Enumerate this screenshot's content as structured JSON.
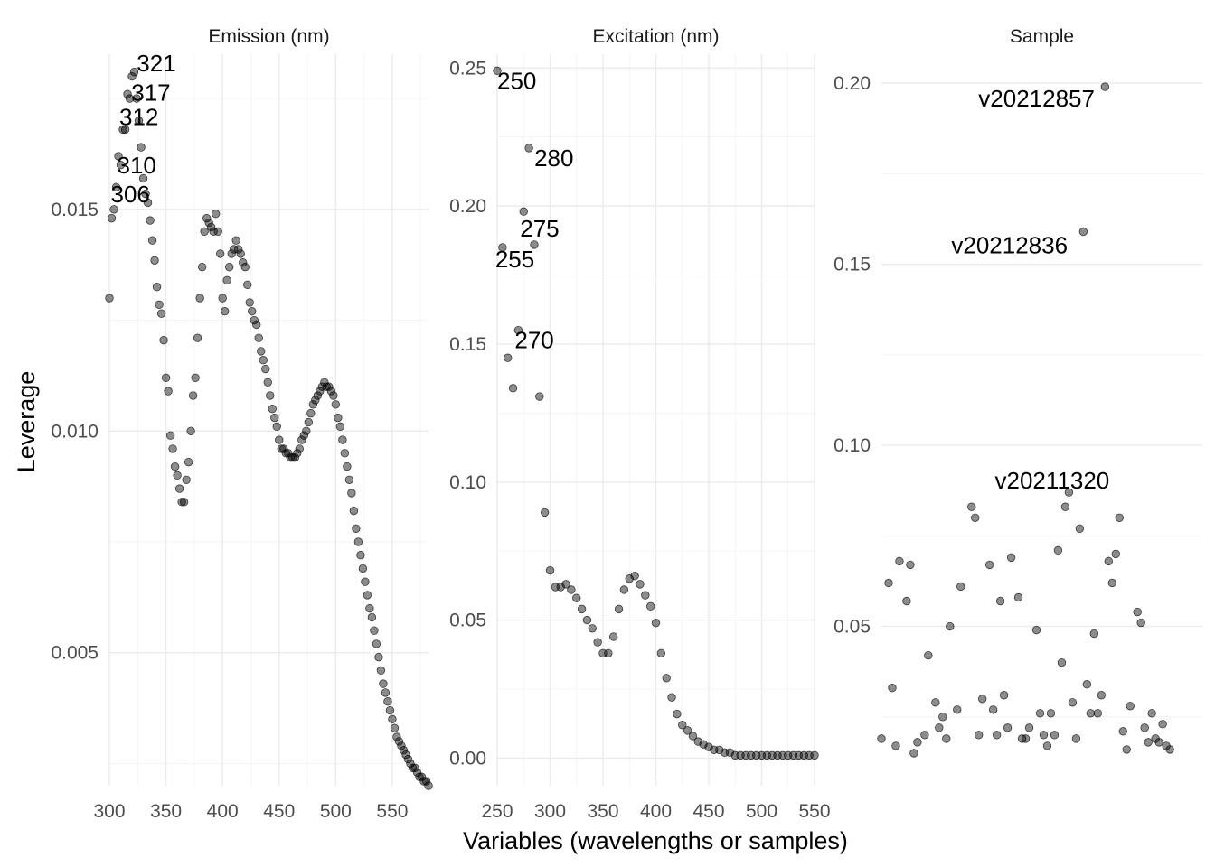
{
  "figure": {
    "xlabel": "Variables (wavelengths or samples)",
    "ylabel": "Leverage"
  },
  "chart_data": [
    {
      "type": "scatter",
      "title": "Emission (nm)",
      "xlim": [
        300,
        582
      ],
      "ylim": [
        0.002,
        0.0185
      ],
      "xticks": [
        300,
        350,
        400,
        450,
        500,
        550
      ],
      "xtick_labels": [
        "300",
        "350",
        "400",
        "450",
        "500",
        "550"
      ],
      "yticks": [
        0.005,
        0.01,
        0.015
      ],
      "ytick_labels": [
        "0.005",
        "0.010",
        "0.015"
      ],
      "anchors": [
        [
          300,
          0.013
        ],
        [
          302,
          0.0148
        ],
        [
          304,
          0.015
        ],
        [
          306,
          0.0155
        ],
        [
          308,
          0.0162
        ],
        [
          310,
          0.016
        ],
        [
          312,
          0.0168
        ],
        [
          314,
          0.0168
        ],
        [
          316,
          0.0176
        ],
        [
          318,
          0.0175
        ],
        [
          320,
          0.018
        ],
        [
          321,
          0.0184
        ],
        [
          323,
          0.0178
        ],
        [
          325,
          0.0172
        ],
        [
          327,
          0.0168
        ],
        [
          329,
          0.016
        ],
        [
          331,
          0.0154
        ],
        [
          333,
          0.0153
        ],
        [
          335,
          0.015
        ],
        [
          337,
          0.0145
        ],
        [
          339,
          0.0141
        ],
        [
          341,
          0.0136
        ],
        [
          343,
          0.0129
        ],
        [
          345,
          0.0128
        ],
        [
          347,
          0.0125
        ],
        [
          349,
          0.0116
        ],
        [
          350,
          0.0112
        ],
        [
          352,
          0.0109
        ],
        [
          354,
          0.0099
        ],
        [
          356,
          0.0096
        ],
        [
          358,
          0.0092
        ],
        [
          360,
          0.009
        ],
        [
          362,
          0.0087
        ],
        [
          364,
          0.0084
        ],
        [
          366,
          0.0084
        ],
        [
          368,
          0.0089
        ],
        [
          370,
          0.0093
        ],
        [
          372,
          0.01
        ],
        [
          374,
          0.0108
        ],
        [
          376,
          0.0112
        ],
        [
          378,
          0.0121
        ],
        [
          380,
          0.013
        ],
        [
          382,
          0.0137
        ],
        [
          384,
          0.0145
        ],
        [
          386,
          0.0148
        ],
        [
          388,
          0.0147
        ],
        [
          390,
          0.0146
        ],
        [
          392,
          0.0145
        ],
        [
          394,
          0.0149
        ],
        [
          396,
          0.0145
        ],
        [
          398,
          0.014
        ],
        [
          400,
          0.013
        ],
        [
          402,
          0.0127
        ],
        [
          404,
          0.0134
        ],
        [
          406,
          0.0137
        ],
        [
          408,
          0.014
        ],
        [
          410,
          0.0141
        ],
        [
          412,
          0.0143
        ],
        [
          414,
          0.0141
        ],
        [
          416,
          0.014
        ],
        [
          418,
          0.0138
        ],
        [
          420,
          0.0137
        ],
        [
          422,
          0.0133
        ],
        [
          424,
          0.0129
        ],
        [
          426,
          0.0127
        ],
        [
          428,
          0.0125
        ],
        [
          430,
          0.0124
        ],
        [
          432,
          0.0121
        ],
        [
          434,
          0.0118
        ],
        [
          436,
          0.0116
        ],
        [
          438,
          0.0114
        ],
        [
          440,
          0.0111
        ],
        [
          442,
          0.0108
        ],
        [
          444,
          0.0105
        ],
        [
          446,
          0.0103
        ],
        [
          448,
          0.0101
        ],
        [
          450,
          0.0098
        ],
        [
          452,
          0.0096
        ],
        [
          454,
          0.0096
        ],
        [
          456,
          0.0095
        ],
        [
          458,
          0.0095
        ],
        [
          460,
          0.0094
        ],
        [
          462,
          0.0094
        ],
        [
          464,
          0.0094
        ],
        [
          466,
          0.0095
        ],
        [
          468,
          0.0096
        ],
        [
          470,
          0.0098
        ],
        [
          472,
          0.0099
        ],
        [
          474,
          0.01
        ],
        [
          476,
          0.0102
        ],
        [
          478,
          0.0104
        ],
        [
          480,
          0.0106
        ],
        [
          482,
          0.0107
        ],
        [
          484,
          0.0108
        ],
        [
          486,
          0.0109
        ],
        [
          488,
          0.011
        ],
        [
          490,
          0.0111
        ],
        [
          492,
          0.011
        ],
        [
          494,
          0.011
        ],
        [
          496,
          0.0109
        ],
        [
          498,
          0.0108
        ],
        [
          500,
          0.0106
        ],
        [
          502,
          0.0103
        ],
        [
          504,
          0.0101
        ],
        [
          506,
          0.0098
        ],
        [
          508,
          0.0095
        ],
        [
          510,
          0.0092
        ],
        [
          512,
          0.0089
        ],
        [
          514,
          0.0086
        ],
        [
          516,
          0.0082
        ],
        [
          518,
          0.0078
        ],
        [
          520,
          0.0075
        ],
        [
          522,
          0.0072
        ],
        [
          524,
          0.0069
        ],
        [
          526,
          0.0066
        ],
        [
          528,
          0.0063
        ],
        [
          530,
          0.006
        ],
        [
          532,
          0.0058
        ],
        [
          534,
          0.0055
        ],
        [
          536,
          0.0052
        ],
        [
          538,
          0.0049
        ],
        [
          540,
          0.0046
        ],
        [
          542,
          0.0043
        ],
        [
          544,
          0.0041
        ],
        [
          546,
          0.0039
        ],
        [
          548,
          0.0037
        ],
        [
          550,
          0.0035
        ],
        [
          552,
          0.0033
        ],
        [
          554,
          0.0031
        ],
        [
          556,
          0.003
        ],
        [
          558,
          0.0029
        ],
        [
          560,
          0.0028
        ],
        [
          562,
          0.0027
        ],
        [
          564,
          0.0026
        ],
        [
          566,
          0.0025
        ],
        [
          568,
          0.0024
        ],
        [
          570,
          0.0024
        ],
        [
          572,
          0.0023
        ],
        [
          574,
          0.0022
        ],
        [
          576,
          0.0022
        ],
        [
          578,
          0.0021
        ],
        [
          580,
          0.0021
        ],
        [
          582,
          0.002
        ]
      ],
      "labels": [
        {
          "text": "321",
          "x": 321,
          "y": 0.0184
        },
        {
          "text": "317",
          "x": 317,
          "y": 0.0177
        },
        {
          "text": "312",
          "x": 312,
          "y": 0.0171
        },
        {
          "text": "310",
          "x": 310,
          "y": 0.0161
        },
        {
          "text": "306",
          "x": 306,
          "y": 0.0154
        }
      ]
    },
    {
      "type": "scatter",
      "title": "Excitation (nm)",
      "xlim": [
        250,
        550
      ],
      "ylim": [
        -0.01,
        0.255
      ],
      "xticks": [
        250,
        300,
        350,
        400,
        450,
        500,
        550
      ],
      "xtick_labels": [
        "250",
        "300",
        "350",
        "400",
        "450",
        "500",
        "550"
      ],
      "yticks": [
        0.0,
        0.05,
        0.1,
        0.15,
        0.2,
        0.25
      ],
      "ytick_labels": [
        "0.00",
        "0.05",
        "0.10",
        "0.15",
        "0.20",
        "0.25"
      ],
      "points": [
        [
          250,
          0.249
        ],
        [
          255,
          0.185
        ],
        [
          260,
          0.145
        ],
        [
          265,
          0.134
        ],
        [
          270,
          0.155
        ],
        [
          275,
          0.198
        ],
        [
          280,
          0.221
        ],
        [
          285,
          0.186
        ],
        [
          290,
          0.131
        ],
        [
          295,
          0.089
        ],
        [
          300,
          0.068
        ],
        [
          305,
          0.062
        ],
        [
          310,
          0.062
        ],
        [
          315,
          0.063
        ],
        [
          320,
          0.061
        ],
        [
          325,
          0.058
        ],
        [
          330,
          0.054
        ],
        [
          335,
          0.05
        ],
        [
          340,
          0.047
        ],
        [
          345,
          0.042
        ],
        [
          350,
          0.038
        ],
        [
          355,
          0.038
        ],
        [
          360,
          0.044
        ],
        [
          365,
          0.054
        ],
        [
          370,
          0.061
        ],
        [
          375,
          0.065
        ],
        [
          380,
          0.066
        ],
        [
          385,
          0.063
        ],
        [
          390,
          0.059
        ],
        [
          395,
          0.055
        ],
        [
          400,
          0.049
        ],
        [
          405,
          0.038
        ],
        [
          410,
          0.029
        ],
        [
          415,
          0.022
        ],
        [
          420,
          0.016
        ],
        [
          425,
          0.012
        ],
        [
          430,
          0.01
        ],
        [
          435,
          0.008
        ],
        [
          440,
          0.006
        ],
        [
          445,
          0.005
        ],
        [
          450,
          0.004
        ],
        [
          455,
          0.003
        ],
        [
          460,
          0.003
        ],
        [
          465,
          0.002
        ],
        [
          470,
          0.002
        ],
        [
          475,
          0.001
        ],
        [
          480,
          0.001
        ],
        [
          485,
          0.001
        ],
        [
          490,
          0.001
        ],
        [
          495,
          0.001
        ],
        [
          500,
          0.001
        ],
        [
          505,
          0.001
        ],
        [
          510,
          0.001
        ],
        [
          515,
          0.001
        ],
        [
          520,
          0.001
        ],
        [
          525,
          0.001
        ],
        [
          530,
          0.001
        ],
        [
          535,
          0.001
        ],
        [
          540,
          0.001
        ],
        [
          545,
          0.001
        ],
        [
          550,
          0.001
        ]
      ],
      "labels": [
        {
          "text": "250",
          "x": 250,
          "y": 0.249
        },
        {
          "text": "280",
          "x": 280,
          "y": 0.221
        },
        {
          "text": "275",
          "x": 275,
          "y": 0.198
        },
        {
          "text": "255",
          "x": 255,
          "y": 0.185
        },
        {
          "text": "270",
          "x": 270,
          "y": 0.155
        }
      ]
    },
    {
      "type": "scatter",
      "title": "Sample",
      "xlim": [
        1,
        90
      ],
      "ylim": [
        0.006,
        0.208
      ],
      "xticks": [],
      "xtick_labels": [],
      "yticks": [
        0.05,
        0.1,
        0.15,
        0.2
      ],
      "ytick_labels": [
        "0.05",
        "0.10",
        "0.15",
        "0.20"
      ],
      "points": [
        [
          1,
          0.019
        ],
        [
          3,
          0.062
        ],
        [
          4,
          0.033
        ],
        [
          5,
          0.017
        ],
        [
          6,
          0.068
        ],
        [
          8,
          0.057
        ],
        [
          9,
          0.067
        ],
        [
          10,
          0.015
        ],
        [
          11,
          0.018
        ],
        [
          13,
          0.02
        ],
        [
          14,
          0.042
        ],
        [
          16,
          0.029
        ],
        [
          17,
          0.022
        ],
        [
          18,
          0.025
        ],
        [
          19,
          0.019
        ],
        [
          20,
          0.05
        ],
        [
          22,
          0.027
        ],
        [
          23,
          0.061
        ],
        [
          26,
          0.083
        ],
        [
          27,
          0.08
        ],
        [
          28,
          0.02
        ],
        [
          29,
          0.03
        ],
        [
          31,
          0.067
        ],
        [
          32,
          0.027
        ],
        [
          33,
          0.02
        ],
        [
          34,
          0.057
        ],
        [
          35,
          0.031
        ],
        [
          36,
          0.022
        ],
        [
          37,
          0.069
        ],
        [
          39,
          0.058
        ],
        [
          40,
          0.019
        ],
        [
          41,
          0.019
        ],
        [
          42,
          0.022
        ],
        [
          44,
          0.049
        ],
        [
          45,
          0.026
        ],
        [
          46,
          0.02
        ],
        [
          47,
          0.017
        ],
        [
          48,
          0.026
        ],
        [
          49,
          0.02
        ],
        [
          50,
          0.071
        ],
        [
          51,
          0.04
        ],
        [
          52,
          0.083
        ],
        [
          53,
          0.087
        ],
        [
          54,
          0.029
        ],
        [
          55,
          0.019
        ],
        [
          56,
          0.077
        ],
        [
          57,
          0.159
        ],
        [
          58,
          0.034
        ],
        [
          59,
          0.026
        ],
        [
          60,
          0.048
        ],
        [
          61,
          0.026
        ],
        [
          62,
          0.031
        ],
        [
          63,
          0.199
        ],
        [
          64,
          0.068
        ],
        [
          65,
          0.062
        ],
        [
          66,
          0.07
        ],
        [
          67,
          0.08
        ],
        [
          68,
          0.021
        ],
        [
          69,
          0.016
        ],
        [
          70,
          0.028
        ],
        [
          72,
          0.054
        ],
        [
          73,
          0.051
        ],
        [
          74,
          0.022
        ],
        [
          75,
          0.018
        ],
        [
          76,
          0.026
        ],
        [
          77,
          0.019
        ],
        [
          78,
          0.018
        ],
        [
          79,
          0.023
        ],
        [
          80,
          0.017
        ],
        [
          81,
          0.016
        ]
      ],
      "labels": [
        {
          "text": "v20212857",
          "x": 63,
          "y": 0.199
        },
        {
          "text": "v20212836",
          "x": 57,
          "y": 0.159
        },
        {
          "text": "v20211320",
          "x": 44,
          "y": 0.083
        }
      ]
    }
  ]
}
